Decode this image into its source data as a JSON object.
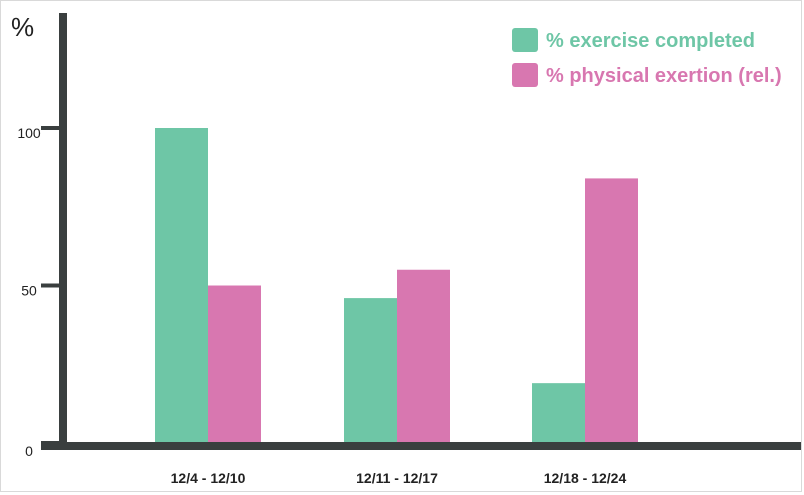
{
  "chart_data": {
    "type": "bar",
    "categories": [
      "12/4 - 12/10",
      "12/11 - 12/17",
      "12/18 - 12/24"
    ],
    "series": [
      {
        "name": "% exercise completed",
        "values": [
          100,
          46,
          19
        ],
        "color": "#6ec6a6"
      },
      {
        "name": "% physical exertion (rel.)",
        "values": [
          50,
          55,
          84
        ],
        "color": "#d877b0"
      }
    ],
    "title": "",
    "xlabel": "",
    "ylabel": "%",
    "ylim": [
      0,
      100
    ],
    "yticks": [
      0,
      50,
      100
    ],
    "grid": false,
    "legend_position": "top-right",
    "axis_color": "#3a3f3f"
  }
}
